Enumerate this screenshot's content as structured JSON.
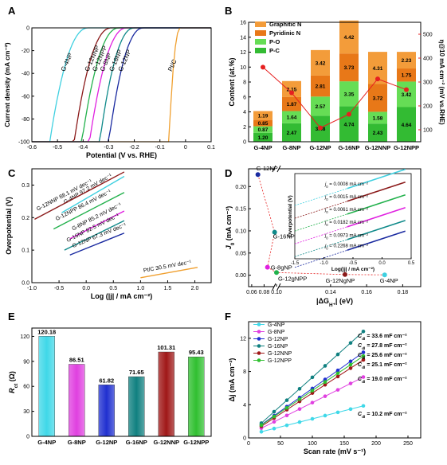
{
  "panels": {
    "A": {
      "letter": "A",
      "chart_data": {
        "type": "line",
        "xlabel": "Potential (V vs. RHE)",
        "ylabel": "Current density (mA cm⁻²)",
        "xlim": [
          -0.6,
          0.1
        ],
        "ylim": [
          -100,
          0
        ],
        "xticks": [
          "-0.6",
          "-0.5",
          "-0.4",
          "-0.3",
          "-0.2",
          "-0.1",
          "0",
          "0.1"
        ],
        "yticks": [
          "-100",
          "-80",
          "-60",
          "-40",
          "-20",
          "0"
        ],
        "series": [
          {
            "name": "G-4NP",
            "color": "#3fd0e0",
            "onset": -0.38,
            "half": -0.53
          },
          {
            "name": "G-12NNP",
            "color": "#8b1a1a",
            "onset": -0.29,
            "half": -0.435
          },
          {
            "name": "G-12NPP",
            "color": "#22b14c",
            "onset": -0.26,
            "half": -0.405
          },
          {
            "name": "G-8NP",
            "color": "#e020e0",
            "onset": -0.23,
            "half": -0.375
          },
          {
            "name": "G-16NP",
            "color": "#0f8a8a",
            "onset": -0.2,
            "half": -0.335
          },
          {
            "name": "G-12NP",
            "color": "#1a2aa0",
            "onset": -0.165,
            "half": -0.3
          },
          {
            "name": "Pt/C",
            "color": "#f0a030",
            "onset": -0.02,
            "half": -0.065
          }
        ]
      }
    },
    "B": {
      "letter": "B",
      "chart_data": {
        "type": "bar",
        "stacked": true,
        "categories": [
          "G-4NP",
          "G-8NP",
          "G-12NP",
          "G-16NP",
          "G-12NNP",
          "G-12NPP"
        ],
        "ylabel": "Content (at.%)",
        "y2label": "η@10 mA cm⁻² (mV vs.RHE)",
        "ylim": [
          0,
          16
        ],
        "y2lim": [
          50,
          550
        ],
        "yticks": [
          "0",
          "2",
          "4",
          "6",
          "8",
          "10",
          "12",
          "14",
          "16"
        ],
        "y2ticks": [
          "100",
          "200",
          "300",
          "400",
          "500"
        ],
        "legend": [
          "Graphitic N",
          "Pyridinic N",
          "P-O",
          "P-C"
        ],
        "colors": {
          "Graphitic N": "#f39c3a",
          "Pyridinic N": "#e87818",
          "P-O": "#66dd55",
          "P-C": "#33bb33",
          "line": "#e62020"
        },
        "series": [
          {
            "name": "P-C",
            "values": [
              1.2,
              2.47,
              3.48,
              4.74,
              2.43,
              4.64
            ],
            "labels": [
              "1.20",
              "2.47",
              "3.48",
              "4.74",
              "2.43",
              "4.64"
            ]
          },
          {
            "name": "P-O",
            "values": [
              0.87,
              1.64,
              2.57,
              3.35,
              1.58,
              3.42
            ],
            "labels": [
              "0.87",
              "1.64",
              "2.57",
              "3.35",
              "1.58",
              "3.42"
            ]
          },
          {
            "name": "Pyridinic N",
            "values": [
              0.85,
              1.87,
              2.81,
              3.73,
              3.72,
              1.75
            ],
            "labels": [
              "0.85",
              "1.87",
              "2.81",
              "3.73",
              "3.72",
              "1.75"
            ]
          },
          {
            "name": "Graphitic N",
            "values": [
              1.19,
              2.15,
              3.42,
              4.42,
              4.31,
              2.23
            ],
            "labels": [
              "1.19",
              "2.15",
              "3.42",
              "4.42",
              "4.31",
              "2.23"
            ]
          }
        ],
        "overpotential": [
          362,
          255,
          108,
          165,
          313,
          268
        ]
      }
    },
    "C": {
      "letter": "C",
      "chart_data": {
        "type": "line",
        "xlabel": "Log (|j| / mA cm⁻²)",
        "ylabel": "Overpotential (V)",
        "xlim": [
          -1.0,
          2.3
        ],
        "ylim": [
          0,
          0.35
        ],
        "xticks": [
          "-1.0",
          "-0.5",
          "0.0",
          "0.5",
          "1.0",
          "1.5",
          "2.0"
        ],
        "yticks": [
          "0.0",
          "0.1",
          "0.2",
          "0.3"
        ],
        "series": [
          {
            "name": "G-4NP",
            "label": "G-4NP 97.2 mV dec⁻¹",
            "color": "#3fd0e0",
            "x": [
              -0.45,
              0.7
            ],
            "y0": 0.215,
            "slope": 0.0972
          },
          {
            "name": "G-12NNP",
            "label": "G-12NNP 88.1 mV dec⁻¹",
            "color": "#8b1a1a",
            "x": [
              -0.95,
              0.7
            ],
            "y0": 0.195,
            "slope": 0.0881
          },
          {
            "name": "G-12NPP",
            "label": "G-12NPP 86.4 mV dec⁻¹",
            "color": "#22b14c",
            "x": [
              -0.6,
              0.7
            ],
            "y0": 0.165,
            "slope": 0.0864
          },
          {
            "name": "G-8NP",
            "label": "G-8NP 85.2 mV dec⁻¹",
            "color": "#e020e0",
            "x": [
              -0.3,
              0.7
            ],
            "y0": 0.135,
            "slope": 0.0852
          },
          {
            "name": "G-16NP",
            "label": "G-16NP 82.5 mV dec⁻¹",
            "color": "#0f8a8a",
            "x": [
              -0.4,
              0.7
            ],
            "y0": 0.1,
            "slope": 0.0825
          },
          {
            "name": "G-12NP",
            "label": "G-12NP 67.3 mV dec⁻¹",
            "color": "#1a2aa0",
            "x": [
              -0.3,
              0.7
            ],
            "y0": 0.085,
            "slope": 0.0673
          },
          {
            "name": "Pt/C",
            "label": "Pt/C  30.5 mV dec⁻¹",
            "color": "#f0a030",
            "x": [
              1.0,
              2.05
            ],
            "y0": 0.015,
            "slope": 0.0305
          }
        ]
      }
    },
    "D": {
      "letter": "D",
      "chart_data": {
        "type": "scatter",
        "xlabel": "|ΔG",
        "xlabel_sub": "H⁺",
        "xlabel_end": "| (eV)",
        "ylabel": "J",
        "ylabel_sub": "0",
        "ylabel_end": " (mA cm⁻²)",
        "xticks": [
          "0.06",
          "0.08",
          "0.10",
          "0.14",
          "0.16",
          "0.18"
        ],
        "yticks": [
          "0.00",
          "0.05",
          "0.10",
          "0.15",
          "0.20"
        ],
        "points": [
          {
            "name": "G-12NP",
            "x": 0.07,
            "y": 0.227,
            "color": "#1a2aa0"
          },
          {
            "name": "G-16NP",
            "x": 0.097,
            "y": 0.097,
            "color": "#0f8a8a"
          },
          {
            "name": "G-8gNP",
            "x": 0.105,
            "y": 0.018,
            "color": "#e020e0"
          },
          {
            "name": "G-12gNPP",
            "x": 0.11,
            "y": 0.006,
            "color": "#22b14c"
          },
          {
            "name": "G-12NgNP",
            "x": 0.148,
            "y": 0.0015,
            "color": "#8b1a1a"
          },
          {
            "name": "G-4NP",
            "x": 0.17,
            "y": 0.0008,
            "color": "#3fd0e0"
          }
        ],
        "inset": {
          "xlabel": "Log(|j| / mA cm⁻²)",
          "ylabel": "Overpotential (V)",
          "xticks": [
            "-1.5",
            "-1.0",
            "-0.5",
            "0.0",
            "0.5"
          ],
          "labels": [
            {
              "j": "j",
              "sub": "0",
              "text": " = 0.0008 mA cm⁻²",
              "color": "#3fd0e0"
            },
            {
              "j": "j",
              "sub": "0",
              "text": " = 0.0015 mA cm⁻²",
              "color": "#8b1a1a"
            },
            {
              "j": "j",
              "sub": "0",
              "text": " = 0.0061 mA cm⁻²",
              "color": "#22b14c"
            },
            {
              "j": "j",
              "sub": "0",
              "text": " = 0.0182 mA cm⁻²",
              "color": "#e020e0"
            },
            {
              "j": "j",
              "sub": "0",
              "text": " = 0.0973 mA cm⁻²",
              "color": "#0f8a8a"
            },
            {
              "j": "j",
              "sub": "0",
              "text": " = 0.2268 mA cm⁻²",
              "color": "#1a2aa0"
            }
          ]
        }
      }
    },
    "E": {
      "letter": "E",
      "chart_data": {
        "type": "bar",
        "categories": [
          "G-4NP",
          "G-8NP",
          "G-12NP",
          "G-16NP",
          "G-12NNP",
          "G-12NPP"
        ],
        "values": [
          120.18,
          86.51,
          61.82,
          71.65,
          101.31,
          95.43
        ],
        "labels": [
          "120.18",
          "86.51",
          "61.82",
          "71.65",
          "101.31",
          "95.43"
        ],
        "ylabel": "R",
        "ylabel_sub": "ct",
        "ylabel_end": " (Ω)",
        "ylim": [
          0,
          130
        ],
        "yticks": [
          "0",
          "30",
          "60",
          "90",
          "120"
        ],
        "colors": [
          "#3fd8e8",
          "#e040e0",
          "#2030d0",
          "#108080",
          "#a01818",
          "#30c030"
        ]
      }
    },
    "F": {
      "letter": "F",
      "chart_data": {
        "type": "scatter",
        "xlabel": "Scan rate (mV s⁻¹)",
        "ylabel": "Δj (mA cm⁻²)",
        "xlim": [
          0,
          270
        ],
        "ylim": [
          0,
          14
        ],
        "xticks": [
          "0",
          "50",
          "100",
          "150",
          "200",
          "250"
        ],
        "yticks": [
          "0",
          "4",
          "8",
          "12"
        ],
        "x": [
          20,
          40,
          60,
          80,
          100,
          120,
          140,
          160,
          180
        ],
        "series": [
          {
            "name": "G-4NP",
            "color": "#3fd8e8",
            "slope": 0.0195,
            "c0": 0.35,
            "cdl": "C",
            "cdl_sub": "dl",
            "cdl_text": " = 10.2 mF cm⁻²"
          },
          {
            "name": "G-8NP",
            "color": "#e040e0",
            "slope": 0.0385,
            "c0": 0.4,
            "cdl": "C",
            "cdl_sub": "dl",
            "cdl_text": " = 19.0 mF cm⁻²"
          },
          {
            "name": "G-12NP",
            "color": "#2030d0",
            "slope": 0.0545,
            "c0": 0.5,
            "cdl": "C",
            "cdl_sub": "dl",
            "cdl_text": " = 27.8 mF cm⁻²"
          },
          {
            "name": "G-16NP",
            "color": "#108080",
            "slope": 0.069,
            "c0": 0.4,
            "cdl": "C",
            "cdl_sub": "dl",
            "cdl_text": " = 33.6 mF cm⁻²"
          },
          {
            "name": "G-12NNP",
            "color": "#a01818",
            "slope": 0.05,
            "c0": 0.4,
            "cdl": "C",
            "cdl_sub": "dl",
            "cdl_text": " = 25.1 mF cm⁻²"
          },
          {
            "name": "G-12NPP",
            "color": "#30c030",
            "slope": 0.052,
            "c0": 0.5,
            "cdl": "C",
            "cdl_sub": "dl",
            "cdl_text": " = 25.6 mF cm⁻²"
          }
        ]
      }
    }
  }
}
